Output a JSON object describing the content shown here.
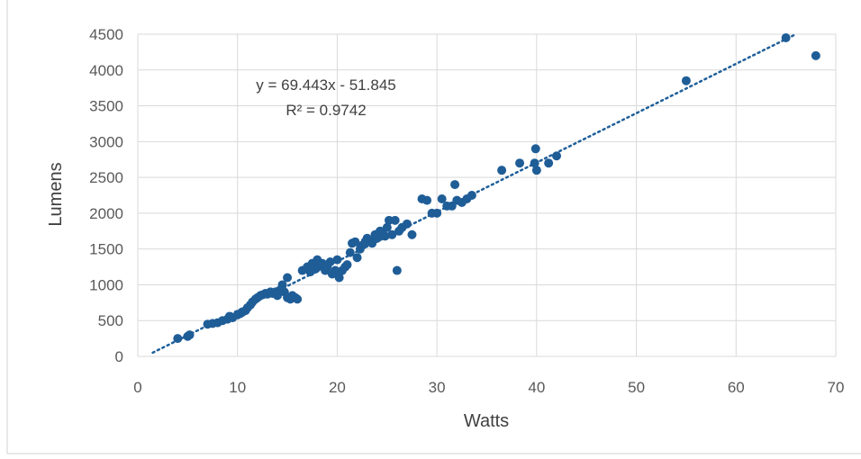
{
  "chart_data": {
    "type": "scatter",
    "title": "",
    "xlabel": "Watts",
    "ylabel": "Lumens",
    "xlim": [
      0,
      70
    ],
    "ylim": [
      0,
      4500
    ],
    "xticks": [
      "0",
      "10",
      "20",
      "30",
      "40",
      "50",
      "60",
      "70"
    ],
    "yticks": [
      "0",
      "500",
      "1000",
      "1500",
      "2000",
      "2500",
      "3000",
      "3500",
      "4000",
      "4500"
    ],
    "grid": true,
    "legend": "none",
    "marker_color": "#1f5d97",
    "trendline": {
      "type": "linear",
      "slope": 69.443,
      "intercept": -51.845,
      "equation_label": "y = 69.443x - 51.845",
      "r2_label": "R² = 0.9742",
      "style": "dotted",
      "color": "#1f5f9a",
      "x_range": [
        1.5,
        66
      ]
    },
    "series": [
      {
        "points": [
          [
            4,
            250
          ],
          [
            5,
            280
          ],
          [
            5.2,
            300
          ],
          [
            7,
            450
          ],
          [
            7.5,
            460
          ],
          [
            8,
            470
          ],
          [
            8.5,
            500
          ],
          [
            9,
            520
          ],
          [
            9.2,
            560
          ],
          [
            9.5,
            540
          ],
          [
            10,
            580
          ],
          [
            10.3,
            600
          ],
          [
            10.5,
            620
          ],
          [
            10.8,
            640
          ],
          [
            11,
            680
          ],
          [
            11.3,
            720
          ],
          [
            11.5,
            760
          ],
          [
            11.8,
            800
          ],
          [
            12,
            820
          ],
          [
            12.3,
            850
          ],
          [
            12.5,
            860
          ],
          [
            12.8,
            880
          ],
          [
            13,
            870
          ],
          [
            13.3,
            900
          ],
          [
            13.5,
            880
          ],
          [
            13.8,
            900
          ],
          [
            14,
            850
          ],
          [
            14.2,
            920
          ],
          [
            14.5,
            1000
          ],
          [
            14.7,
            900
          ],
          [
            15,
            1100
          ],
          [
            15,
            820
          ],
          [
            15.3,
            800
          ],
          [
            15.5,
            850
          ],
          [
            15.8,
            820
          ],
          [
            16,
            800
          ],
          [
            16.5,
            1200
          ],
          [
            17,
            1250
          ],
          [
            17.3,
            1180
          ],
          [
            17.5,
            1300
          ],
          [
            17.8,
            1220
          ],
          [
            18,
            1350
          ],
          [
            18.2,
            1260
          ],
          [
            18.5,
            1300
          ],
          [
            18.8,
            1200
          ],
          [
            19,
            1250
          ],
          [
            19.3,
            1320
          ],
          [
            19.5,
            1150
          ],
          [
            19.8,
            1200
          ],
          [
            20,
            1350
          ],
          [
            20.2,
            1100
          ],
          [
            20.5,
            1200
          ],
          [
            20.8,
            1250
          ],
          [
            21,
            1280
          ],
          [
            21.3,
            1450
          ],
          [
            21.5,
            1580
          ],
          [
            21.8,
            1600
          ],
          [
            22,
            1380
          ],
          [
            22.3,
            1500
          ],
          [
            22.5,
            1550
          ],
          [
            22.8,
            1600
          ],
          [
            23,
            1650
          ],
          [
            23.3,
            1620
          ],
          [
            23.5,
            1580
          ],
          [
            23.8,
            1700
          ],
          [
            24,
            1650
          ],
          [
            24.3,
            1750
          ],
          [
            24.5,
            1720
          ],
          [
            24.8,
            1680
          ],
          [
            25,
            1800
          ],
          [
            25.2,
            1900
          ],
          [
            25.5,
            1700
          ],
          [
            25.8,
            1900
          ],
          [
            26,
            1200
          ],
          [
            26.2,
            1750
          ],
          [
            26.5,
            1800
          ],
          [
            27,
            1850
          ],
          [
            27.5,
            1700
          ],
          [
            28.5,
            2200
          ],
          [
            29,
            2180
          ],
          [
            29.5,
            2000
          ],
          [
            30,
            2000
          ],
          [
            30.5,
            2200
          ],
          [
            31,
            2100
          ],
          [
            31.5,
            2100
          ],
          [
            31.8,
            2400
          ],
          [
            32,
            2180
          ],
          [
            32.5,
            2150
          ],
          [
            33,
            2200
          ],
          [
            33.5,
            2250
          ],
          [
            36.5,
            2600
          ],
          [
            38.3,
            2700
          ],
          [
            39.8,
            2700
          ],
          [
            39.9,
            2900
          ],
          [
            40,
            2600
          ],
          [
            41.2,
            2700
          ],
          [
            42,
            2800
          ],
          [
            55,
            3850
          ],
          [
            65,
            4450
          ],
          [
            68,
            4200
          ]
        ]
      }
    ]
  }
}
